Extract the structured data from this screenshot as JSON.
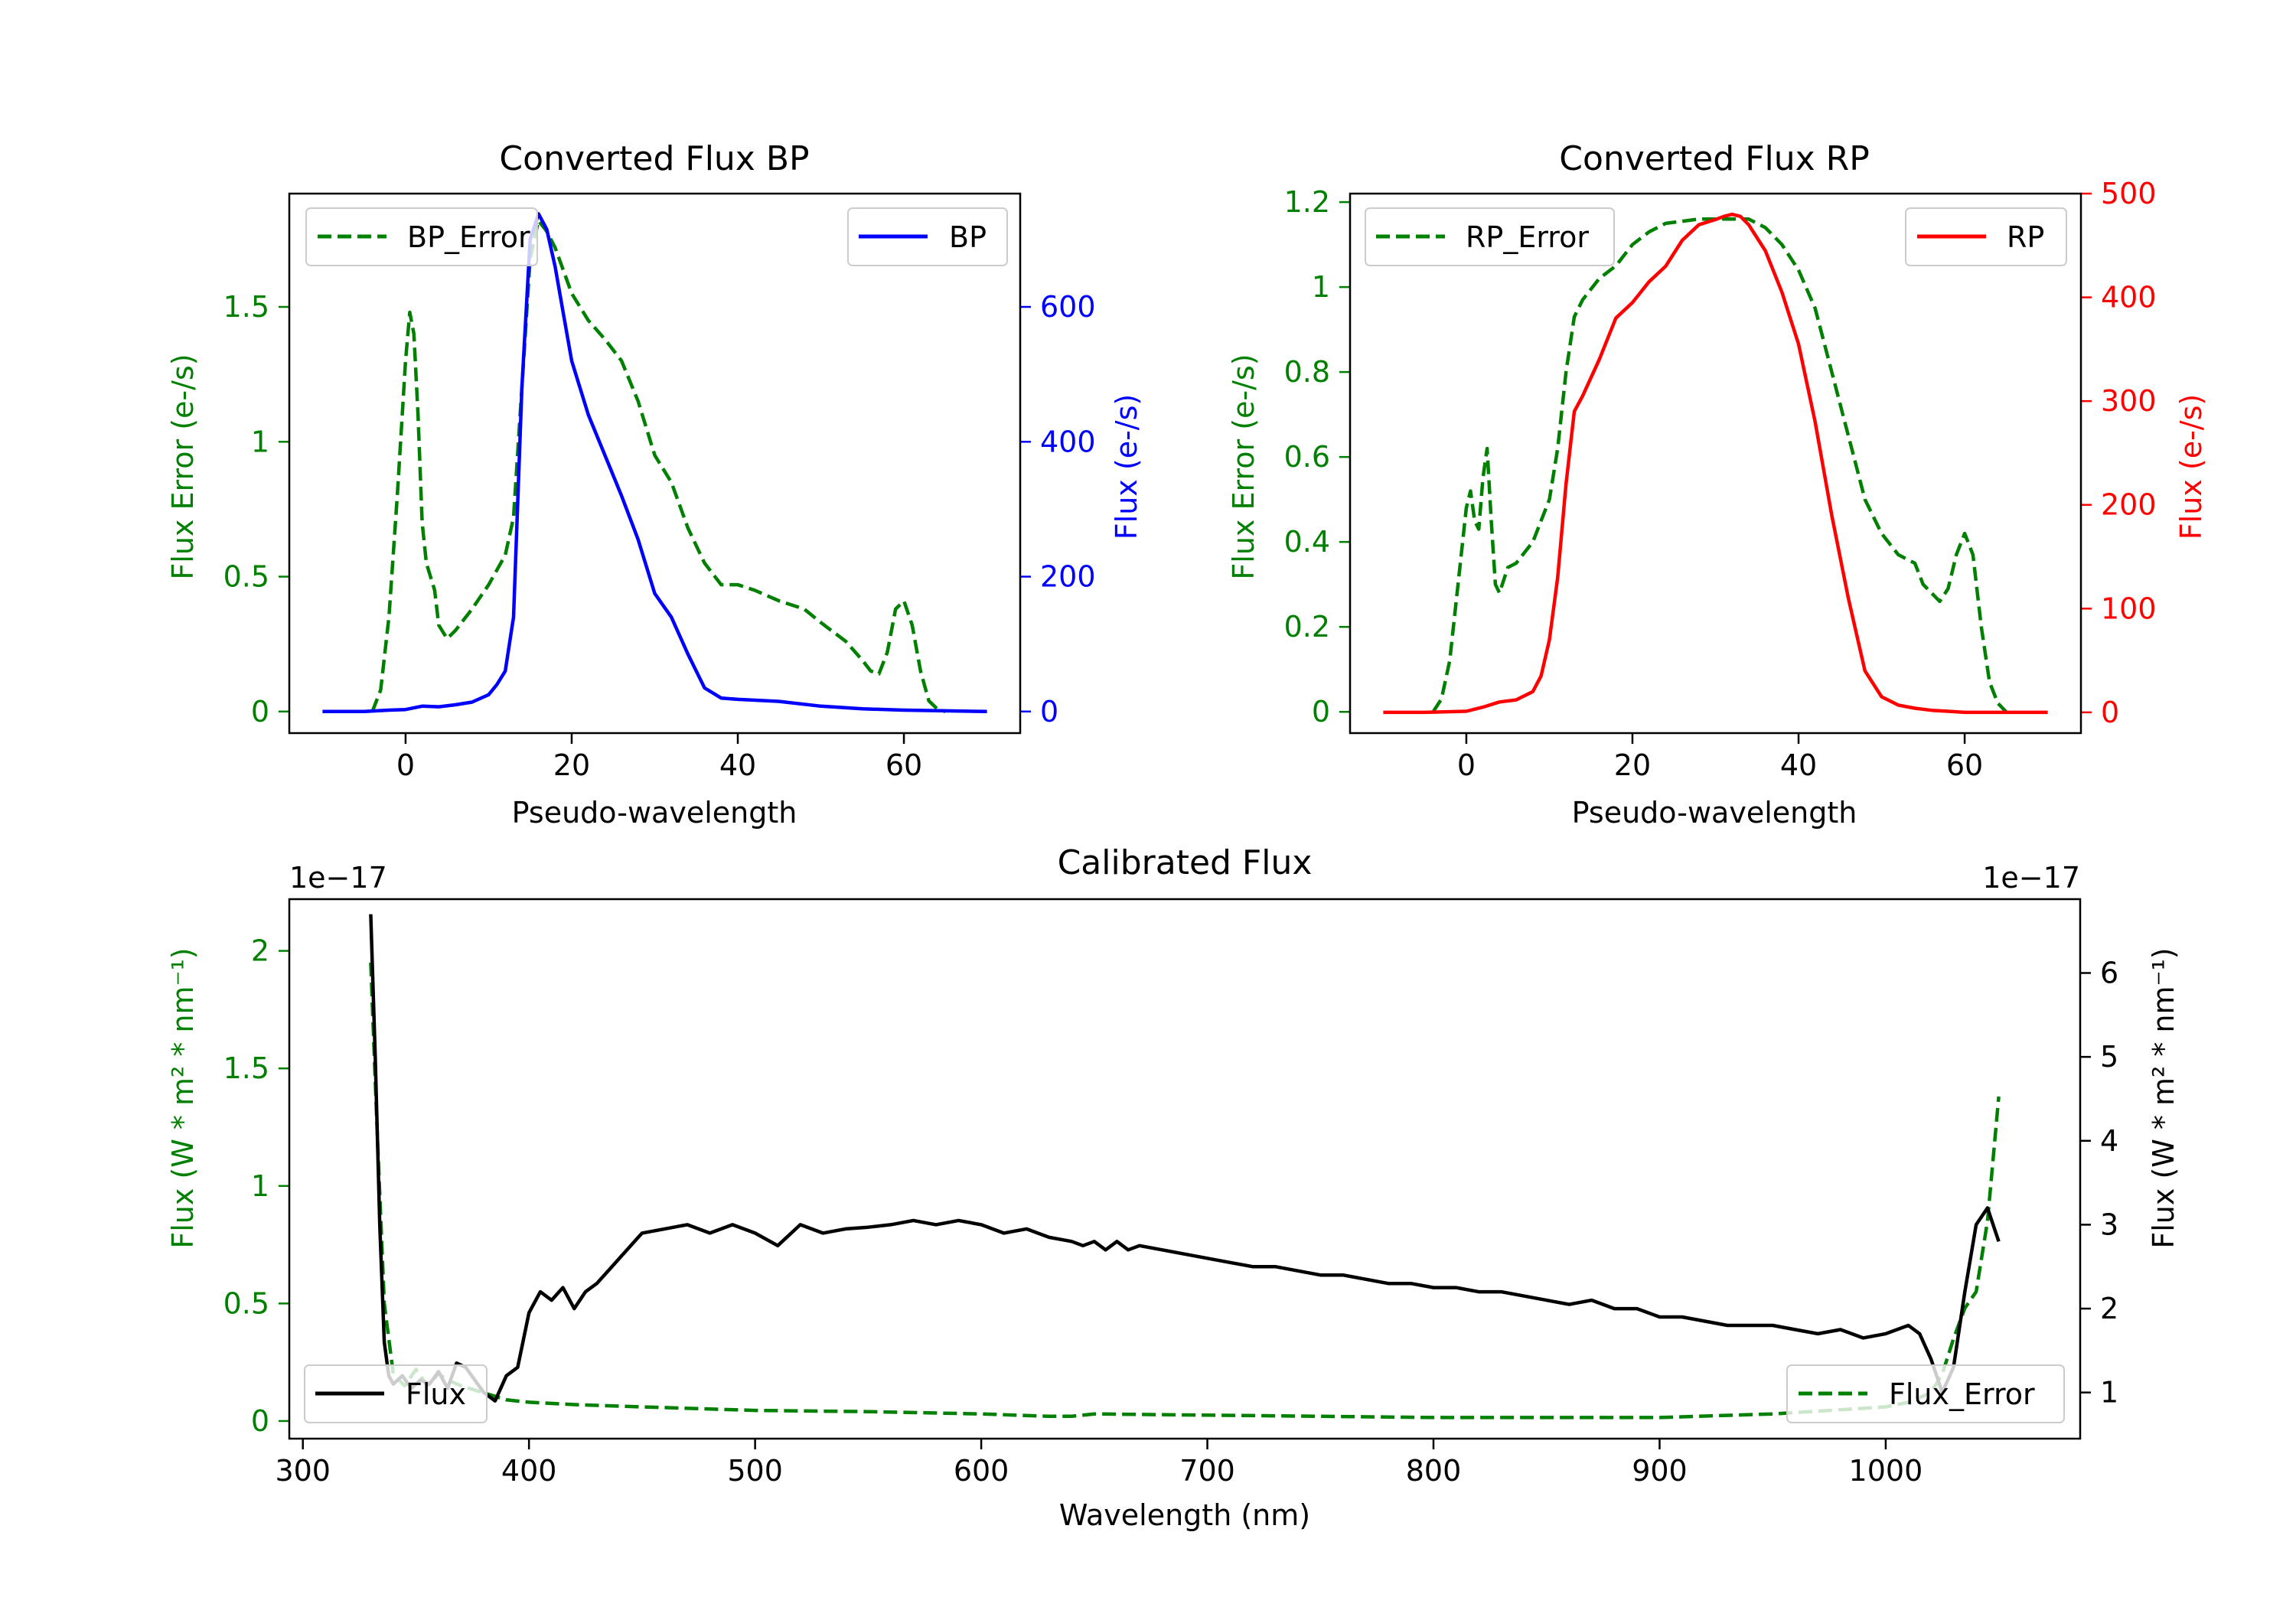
{
  "colors": {
    "green": "#008000",
    "blue": "#0000ff",
    "red": "#ff0000",
    "black": "#000000"
  },
  "chart_data": [
    {
      "type": "line",
      "title": "Converted Flux BP",
      "xlabel": "Pseudo-wavelength",
      "ylabel_left": "Flux Error (e-/s)",
      "ylabel_right": "Flux (e-/s)",
      "xlim": [
        -14,
        74
      ],
      "ylim_left": [
        -0.08,
        1.92
      ],
      "ylim_right": [
        -32,
        768
      ],
      "xticks": [
        0,
        20,
        40,
        60
      ],
      "yticks_left": [
        0.0,
        0.5,
        1.0,
        1.5
      ],
      "yticks_right": [
        0,
        200,
        400,
        600
      ],
      "legend_left": {
        "label": "BP_Error",
        "position": "upper left"
      },
      "legend_right": {
        "label": "BP",
        "position": "upper right"
      },
      "series": [
        {
          "name": "BP_Error",
          "axis": "left",
          "color": "green",
          "style": "dashed",
          "x": [
            -4,
            -3,
            -2,
            -1,
            0,
            0.5,
            1,
            1.5,
            2,
            2.5,
            3,
            3.5,
            4,
            5,
            6,
            8,
            10,
            12,
            13,
            14,
            15,
            16,
            17,
            18,
            20,
            22,
            24,
            26,
            28,
            30,
            32,
            34,
            36,
            38,
            40,
            42,
            45,
            48,
            50,
            53,
            55,
            56,
            57,
            58,
            59,
            60,
            61,
            62,
            63,
            64,
            65
          ],
          "y": [
            0.0,
            0.08,
            0.35,
            0.8,
            1.3,
            1.48,
            1.4,
            1.1,
            0.7,
            0.55,
            0.5,
            0.45,
            0.32,
            0.27,
            0.3,
            0.38,
            0.47,
            0.58,
            0.72,
            1.2,
            1.68,
            1.82,
            1.78,
            1.72,
            1.55,
            1.45,
            1.38,
            1.3,
            1.15,
            0.95,
            0.85,
            0.68,
            0.55,
            0.47,
            0.47,
            0.45,
            0.41,
            0.38,
            0.33,
            0.26,
            0.19,
            0.15,
            0.14,
            0.22,
            0.38,
            0.41,
            0.32,
            0.15,
            0.04,
            0.01,
            0.0
          ]
        },
        {
          "name": "BP",
          "axis": "right",
          "color": "blue",
          "style": "solid",
          "x": [
            -10,
            -5,
            -2,
            0,
            2,
            4,
            6,
            8,
            10,
            11,
            12,
            13,
            14,
            15,
            16,
            17,
            18,
            19,
            20,
            22,
            24,
            26,
            28,
            30,
            32,
            34,
            36,
            38,
            40,
            45,
            50,
            55,
            60,
            65,
            70
          ],
          "y": [
            0,
            0,
            2,
            3,
            8,
            7,
            10,
            14,
            25,
            40,
            60,
            140,
            480,
            700,
            738,
            715,
            660,
            590,
            520,
            440,
            380,
            320,
            255,
            175,
            140,
            85,
            35,
            20,
            18,
            15,
            8,
            4,
            2,
            1,
            0
          ]
        }
      ]
    },
    {
      "type": "line",
      "title": "Converted Flux RP",
      "xlabel": "Pseudo-wavelength",
      "ylabel_left": "Flux Error (e-/s)",
      "ylabel_right": "Flux (e-/s)",
      "xlim": [
        -14,
        74
      ],
      "ylim_left": [
        -0.05,
        1.22
      ],
      "ylim_right": [
        -20,
        500
      ],
      "xticks": [
        0,
        20,
        40,
        60
      ],
      "yticks_left": [
        0.0,
        0.2,
        0.4,
        0.6,
        0.8,
        1.0,
        1.2
      ],
      "yticks_right": [
        0,
        100,
        200,
        300,
        400,
        500
      ],
      "legend_left": {
        "label": "RP_Error",
        "position": "upper left"
      },
      "legend_right": {
        "label": "RP",
        "position": "upper right"
      },
      "series": [
        {
          "name": "RP_Error",
          "axis": "left",
          "color": "green",
          "style": "dashed",
          "x": [
            -4,
            -3,
            -2,
            -1,
            0,
            0.5,
            1,
            1.5,
            2,
            2.5,
            3,
            3.5,
            4,
            5,
            6,
            8,
            10,
            11,
            12,
            13,
            14,
            16,
            18,
            20,
            22,
            24,
            26,
            28,
            30,
            32,
            34,
            36,
            38,
            40,
            42,
            44,
            46,
            48,
            50,
            52,
            54,
            55,
            56,
            57,
            58,
            59,
            60,
            61,
            62,
            63,
            64,
            65
          ],
          "y": [
            0.0,
            0.03,
            0.12,
            0.3,
            0.48,
            0.52,
            0.45,
            0.43,
            0.55,
            0.62,
            0.45,
            0.3,
            0.28,
            0.34,
            0.35,
            0.4,
            0.5,
            0.62,
            0.8,
            0.93,
            0.97,
            1.02,
            1.05,
            1.1,
            1.13,
            1.15,
            1.155,
            1.16,
            1.16,
            1.16,
            1.16,
            1.14,
            1.1,
            1.04,
            0.95,
            0.8,
            0.65,
            0.5,
            0.42,
            0.37,
            0.35,
            0.3,
            0.28,
            0.26,
            0.29,
            0.37,
            0.42,
            0.37,
            0.2,
            0.07,
            0.02,
            0.0
          ]
        },
        {
          "name": "RP",
          "axis": "right",
          "color": "red",
          "style": "solid",
          "x": [
            -10,
            -5,
            0,
            2,
            4,
            6,
            8,
            9,
            10,
            11,
            12,
            13,
            14,
            16,
            18,
            20,
            22,
            24,
            26,
            28,
            30,
            31,
            32,
            33,
            34,
            36,
            38,
            40,
            42,
            44,
            46,
            48,
            50,
            52,
            54,
            56,
            58,
            60,
            65,
            70
          ],
          "y": [
            0,
            0,
            1,
            5,
            10,
            12,
            20,
            35,
            70,
            130,
            220,
            290,
            305,
            340,
            380,
            395,
            415,
            430,
            455,
            470,
            475,
            478,
            480,
            478,
            470,
            445,
            405,
            355,
            280,
            190,
            110,
            40,
            15,
            7,
            4,
            2,
            1,
            0,
            0,
            0
          ]
        }
      ]
    },
    {
      "type": "line",
      "title": "Calibrated Flux",
      "xlabel": "Wavelength (nm)",
      "ylabel_left": "Flux (W * m² * nm⁻¹)",
      "ylabel_right": "Flux (W * m² * nm⁻¹)",
      "offset_left": "1e−17",
      "offset_right": "1e−17",
      "xlim": [
        294,
        1086
      ],
      "ylim_left": [
        -0.075,
        2.22
      ],
      "ylim_right": [
        0.45,
        6.88
      ],
      "xticks": [
        300,
        400,
        500,
        600,
        700,
        800,
        900,
        1000
      ],
      "yticks_left": [
        0.0,
        0.5,
        1.0,
        1.5,
        2.0
      ],
      "yticks_right": [
        1,
        2,
        3,
        4,
        5,
        6
      ],
      "legend_left": {
        "label": "Flux",
        "position": "lower left"
      },
      "legend_right": {
        "label": "Flux_Error",
        "position": "lower right"
      },
      "series": [
        {
          "name": "Flux_Error",
          "axis": "left",
          "color": "green",
          "style": "dashed",
          "x": [
            330,
            333,
            336,
            340,
            345,
            350,
            355,
            360,
            365,
            370,
            380,
            390,
            400,
            420,
            450,
            500,
            550,
            600,
            630,
            640,
            650,
            700,
            750,
            800,
            850,
            900,
            950,
            1000,
            1010,
            1020,
            1025,
            1030,
            1035,
            1040,
            1045,
            1050
          ],
          "y": [
            1.95,
            1.2,
            0.5,
            0.2,
            0.15,
            0.22,
            0.15,
            0.2,
            0.17,
            0.15,
            0.12,
            0.09,
            0.08,
            0.07,
            0.06,
            0.045,
            0.04,
            0.03,
            0.02,
            0.02,
            0.03,
            0.025,
            0.02,
            0.015,
            0.015,
            0.015,
            0.03,
            0.06,
            0.08,
            0.12,
            0.2,
            0.35,
            0.48,
            0.55,
            0.85,
            1.38
          ]
        },
        {
          "name": "Flux",
          "axis": "right",
          "color": "black",
          "style": "solid",
          "x": [
            330,
            332,
            334,
            336,
            338,
            340,
            344,
            348,
            352,
            356,
            360,
            364,
            368,
            372,
            376,
            380,
            385,
            390,
            395,
            400,
            405,
            410,
            415,
            420,
            425,
            430,
            440,
            450,
            460,
            470,
            480,
            490,
            500,
            510,
            520,
            530,
            540,
            550,
            560,
            570,
            580,
            590,
            600,
            610,
            620,
            630,
            640,
            645,
            650,
            655,
            660,
            665,
            670,
            680,
            690,
            700,
            710,
            720,
            730,
            740,
            750,
            760,
            770,
            780,
            790,
            800,
            810,
            820,
            830,
            840,
            850,
            860,
            870,
            880,
            890,
            900,
            910,
            920,
            930,
            940,
            950,
            960,
            970,
            980,
            990,
            1000,
            1010,
            1015,
            1020,
            1025,
            1030,
            1035,
            1040,
            1045,
            1050
          ],
          "y": [
            6.7,
            5.0,
            3.0,
            1.6,
            1.2,
            1.1,
            1.2,
            1.05,
            1.15,
            1.1,
            1.25,
            1.05,
            1.35,
            1.3,
            1.15,
            1.0,
            0.9,
            1.2,
            1.3,
            1.95,
            2.2,
            2.1,
            2.25,
            2.0,
            2.2,
            2.3,
            2.6,
            2.9,
            2.95,
            3.0,
            2.9,
            3.0,
            2.9,
            2.75,
            3.0,
            2.9,
            2.95,
            2.97,
            3.0,
            3.05,
            3.0,
            3.05,
            3.0,
            2.9,
            2.95,
            2.85,
            2.8,
            2.75,
            2.8,
            2.7,
            2.8,
            2.7,
            2.75,
            2.7,
            2.65,
            2.6,
            2.55,
            2.5,
            2.5,
            2.45,
            2.4,
            2.4,
            2.35,
            2.3,
            2.3,
            2.25,
            2.25,
            2.2,
            2.2,
            2.15,
            2.1,
            2.05,
            2.1,
            2.0,
            2.0,
            1.9,
            1.9,
            1.85,
            1.8,
            1.8,
            1.8,
            1.75,
            1.7,
            1.75,
            1.65,
            1.7,
            1.8,
            1.7,
            1.4,
            1.0,
            1.3,
            2.2,
            3.0,
            3.2,
            2.8
          ]
        }
      ]
    }
  ]
}
